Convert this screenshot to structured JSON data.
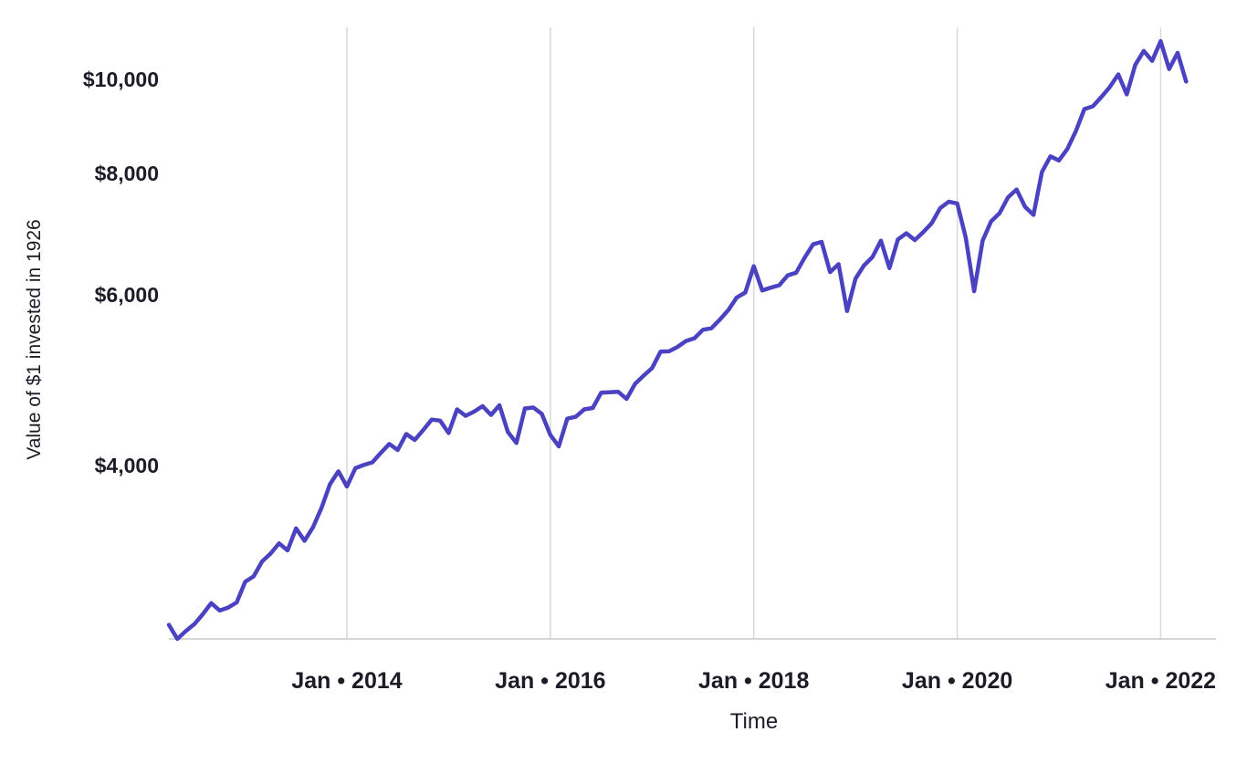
{
  "chart_data": {
    "type": "line",
    "title": "",
    "xlabel": "Time",
    "ylabel": "Value of $1 invested in 1926",
    "y_scale": "log",
    "grid": "vertical-only",
    "legend": "none",
    "line_color": "#4b42c1",
    "grid_color": "#d9d9d9",
    "axis_color": "#c9c9c9",
    "text_color": "#1d1b26",
    "x_range": [
      "2012-04",
      "2022-04"
    ],
    "ylim": [
      2500,
      11500
    ],
    "y_ticks": [
      {
        "value": 4000,
        "label": "$4,000"
      },
      {
        "value": 6000,
        "label": "$6,000"
      },
      {
        "value": 8000,
        "label": "$8,000"
      },
      {
        "value": 10000,
        "label": "$10,000"
      }
    ],
    "x_ticks": [
      {
        "value": "2014-01",
        "label": "Jan • 2014"
      },
      {
        "value": "2016-01",
        "label": "Jan • 2016"
      },
      {
        "value": "2018-01",
        "label": "Jan • 2018"
      },
      {
        "value": "2020-01",
        "label": "Jan • 2020"
      },
      {
        "value": "2022-01",
        "label": "Jan • 2022"
      }
    ],
    "series_name": "Value of $1 invested in 1926",
    "x": [
      "2012-04",
      "2012-05",
      "2012-06",
      "2012-07",
      "2012-08",
      "2012-09",
      "2012-10",
      "2012-11",
      "2012-12",
      "2013-01",
      "2013-02",
      "2013-03",
      "2013-04",
      "2013-05",
      "2013-06",
      "2013-07",
      "2013-08",
      "2013-09",
      "2013-10",
      "2013-11",
      "2013-12",
      "2014-01",
      "2014-02",
      "2014-03",
      "2014-04",
      "2014-05",
      "2014-06",
      "2014-07",
      "2014-08",
      "2014-09",
      "2014-10",
      "2014-11",
      "2014-12",
      "2015-01",
      "2015-02",
      "2015-03",
      "2015-04",
      "2015-05",
      "2015-06",
      "2015-07",
      "2015-08",
      "2015-09",
      "2015-10",
      "2015-11",
      "2015-12",
      "2016-01",
      "2016-02",
      "2016-03",
      "2016-04",
      "2016-05",
      "2016-06",
      "2016-07",
      "2016-08",
      "2016-09",
      "2016-10",
      "2016-11",
      "2016-12",
      "2017-01",
      "2017-02",
      "2017-03",
      "2017-04",
      "2017-05",
      "2017-06",
      "2017-07",
      "2017-08",
      "2017-09",
      "2017-10",
      "2017-11",
      "2017-12",
      "2018-01",
      "2018-02",
      "2018-03",
      "2018-04",
      "2018-05",
      "2018-06",
      "2018-07",
      "2018-08",
      "2018-09",
      "2018-10",
      "2018-11",
      "2018-12",
      "2019-01",
      "2019-02",
      "2019-03",
      "2019-04",
      "2019-05",
      "2019-06",
      "2019-07",
      "2019-08",
      "2019-09",
      "2019-10",
      "2019-11",
      "2019-12",
      "2020-01",
      "2020-02",
      "2020-03",
      "2020-04",
      "2020-05",
      "2020-06",
      "2020-07",
      "2020-08",
      "2020-09",
      "2020-10",
      "2020-11",
      "2020-12",
      "2021-01",
      "2021-02",
      "2021-03",
      "2021-04",
      "2021-05",
      "2021-06",
      "2021-07",
      "2021-08",
      "2021-09",
      "2021-10",
      "2021-11",
      "2021-12",
      "2022-01",
      "2022-02",
      "2022-03",
      "2022-04"
    ],
    "values": [
      2740,
      2650,
      2700,
      2745,
      2810,
      2885,
      2835,
      2855,
      2890,
      3035,
      3075,
      3185,
      3245,
      3325,
      3270,
      3445,
      3345,
      3455,
      3615,
      3825,
      3945,
      3805,
      3975,
      4005,
      4030,
      4120,
      4210,
      4150,
      4310,
      4250,
      4350,
      4460,
      4450,
      4320,
      4570,
      4500,
      4545,
      4605,
      4510,
      4615,
      4330,
      4220,
      4580,
      4590,
      4520,
      4300,
      4185,
      4470,
      4490,
      4570,
      4585,
      4755,
      4760,
      4765,
      4685,
      4855,
      4950,
      5040,
      5240,
      5245,
      5300,
      5375,
      5410,
      5520,
      5540,
      5655,
      5785,
      5960,
      6030,
      6420,
      6060,
      6100,
      6135,
      6280,
      6320,
      6550,
      6760,
      6800,
      6330,
      6450,
      5770,
      6230,
      6430,
      6560,
      6820,
      6390,
      6840,
      6940,
      6830,
      6960,
      7110,
      7370,
      7480,
      7450,
      6870,
      6050,
      6820,
      7140,
      7280,
      7560,
      7700,
      7390,
      7250,
      8030,
      8330,
      8250,
      8480,
      8850,
      9320,
      9380,
      9590,
      9820,
      10120,
      9650,
      10350,
      10700,
      10450,
      10950,
      10250,
      10650,
      9950
    ]
  }
}
